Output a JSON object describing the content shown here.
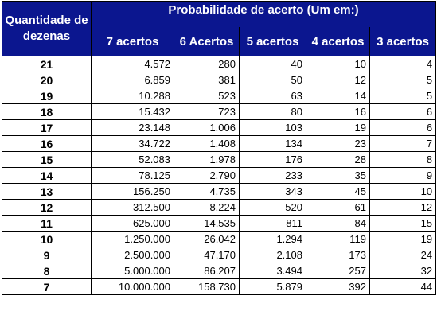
{
  "table": {
    "header_qtd": "Quantidade de dezenas",
    "header_prob": "Probabilidade de acerto (Um em:)",
    "columns": [
      "7 acertos",
      "6 Acertos",
      "5 acertos",
      "4 acertos",
      "3 acertos"
    ],
    "rows": [
      {
        "dezenas": "21",
        "values": [
          "4.572",
          "280",
          "40",
          "10",
          "4"
        ]
      },
      {
        "dezenas": "20",
        "values": [
          "6.859",
          "381",
          "50",
          "12",
          "5"
        ]
      },
      {
        "dezenas": "19",
        "values": [
          "10.288",
          "523",
          "63",
          "14",
          "5"
        ]
      },
      {
        "dezenas": "18",
        "values": [
          "15.432",
          "723",
          "80",
          "16",
          "6"
        ]
      },
      {
        "dezenas": "17",
        "values": [
          "23.148",
          "1.006",
          "103",
          "19",
          "6"
        ]
      },
      {
        "dezenas": "16",
        "values": [
          "34.722",
          "1.408",
          "134",
          "23",
          "7"
        ]
      },
      {
        "dezenas": "15",
        "values": [
          "52.083",
          "1.978",
          "176",
          "28",
          "8"
        ]
      },
      {
        "dezenas": "14",
        "values": [
          "78.125",
          "2.790",
          "233",
          "35",
          "9"
        ]
      },
      {
        "dezenas": "13",
        "values": [
          "156.250",
          "4.735",
          "343",
          "45",
          "10"
        ]
      },
      {
        "dezenas": "12",
        "values": [
          "312.500",
          "8.224",
          "520",
          "61",
          "12"
        ]
      },
      {
        "dezenas": "11",
        "values": [
          "625.000",
          "14.535",
          "811",
          "84",
          "15"
        ]
      },
      {
        "dezenas": "10",
        "values": [
          "1.250.000",
          "26.042",
          "1.294",
          "119",
          "19"
        ]
      },
      {
        "dezenas": "9",
        "values": [
          "2.500.000",
          "47.170",
          "2.108",
          "173",
          "24"
        ]
      },
      {
        "dezenas": "8",
        "values": [
          "5.000.000",
          "86.207",
          "3.494",
          "257",
          "32"
        ]
      },
      {
        "dezenas": "7",
        "values": [
          "10.000.000",
          "158.730",
          "5.879",
          "392",
          "44"
        ]
      }
    ]
  },
  "colors": {
    "header_bg": "#0b168f",
    "header_text": "#ffffff",
    "border": "#000000"
  }
}
